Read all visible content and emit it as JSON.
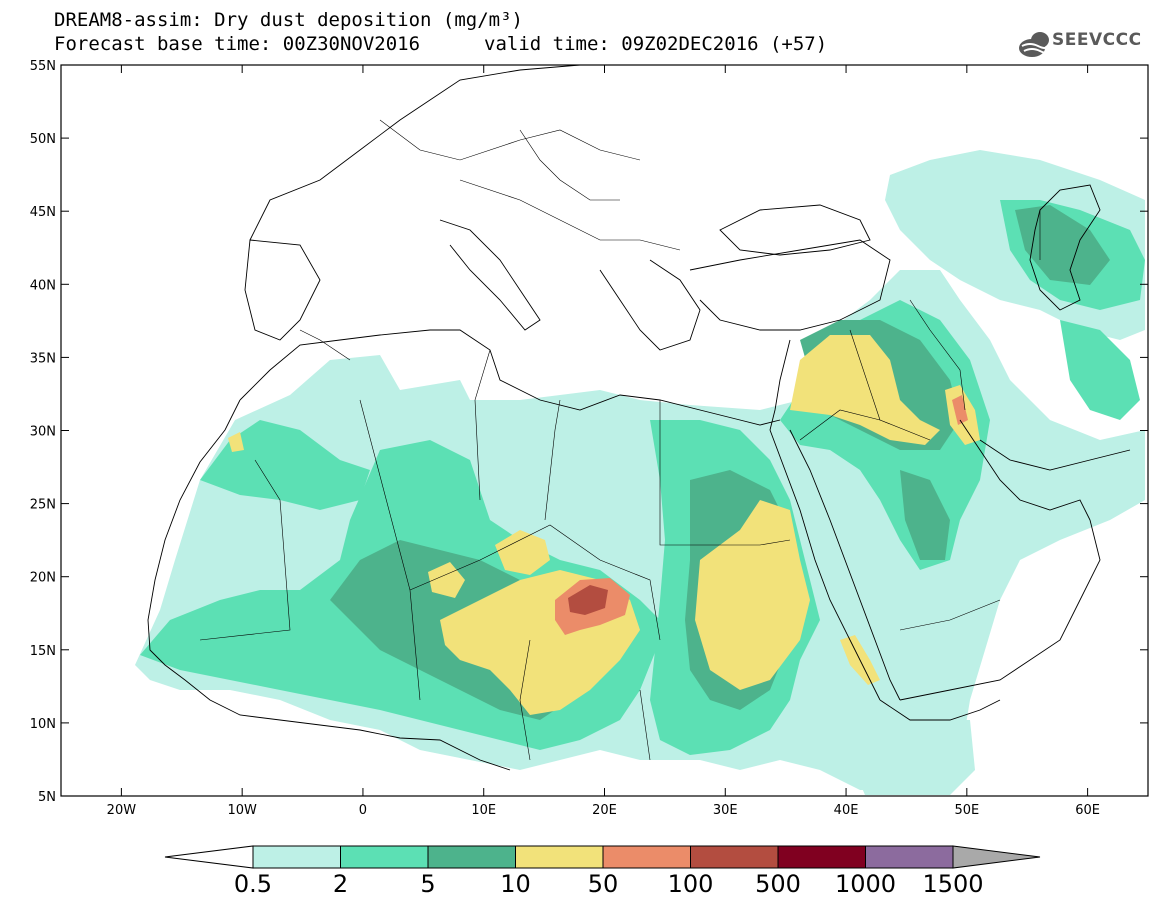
{
  "header": {
    "title_line1": "DREAM8-assim: Dry dust deposition (mg/m³)",
    "title_line2": "Forecast base time: 00Z30NOV2016",
    "valid_time": "valid time: 09Z02DEC2016 (+57)",
    "logo_text": "SEEVCCC"
  },
  "map": {
    "lon_range": [
      -25,
      65
    ],
    "lat_range": [
      5,
      55
    ],
    "lat_ticks": [
      {
        "value": 55,
        "label": "55N"
      },
      {
        "value": 50,
        "label": "50N"
      },
      {
        "value": 45,
        "label": "45N"
      },
      {
        "value": 40,
        "label": "40N"
      },
      {
        "value": 35,
        "label": "35N"
      },
      {
        "value": 30,
        "label": "30N"
      },
      {
        "value": 25,
        "label": "25N"
      },
      {
        "value": 20,
        "label": "20N"
      },
      {
        "value": 15,
        "label": "15N"
      },
      {
        "value": 10,
        "label": "10N"
      },
      {
        "value": 5,
        "label": "5N"
      }
    ],
    "lon_ticks": [
      {
        "value": -20,
        "label": "20W"
      },
      {
        "value": -10,
        "label": "10W"
      },
      {
        "value": 0,
        "label": "0"
      },
      {
        "value": 10,
        "label": "10E"
      },
      {
        "value": 20,
        "label": "20E"
      },
      {
        "value": 30,
        "label": "30E"
      },
      {
        "value": 40,
        "label": "40E"
      },
      {
        "value": 50,
        "label": "50E"
      },
      {
        "value": 60,
        "label": "60E"
      }
    ]
  },
  "colorbar": {
    "labels": [
      "0.5",
      "2",
      "5",
      "10",
      "50",
      "100",
      "500",
      "1000",
      "1500"
    ],
    "colors": [
      "#bdf0e6",
      "#5ce0b4",
      "#4db38c",
      "#f2e27a",
      "#eb8c69",
      "#b34d40",
      "#800020",
      "#8c6b9e"
    ],
    "lower_arrow_color": "#ffffff",
    "upper_arrow_color": "#a9a9a9"
  }
}
